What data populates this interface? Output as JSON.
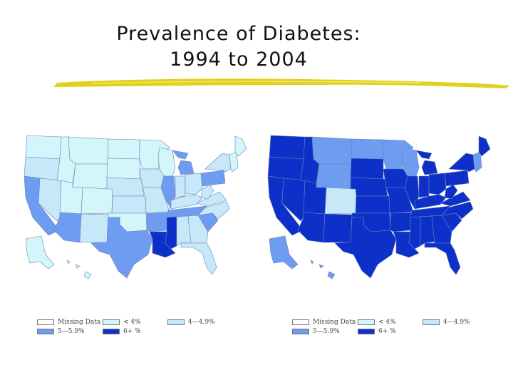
{
  "slide": {
    "title_line1": "Prevalence of Diabetes:",
    "title_line2": "1994 to 2004"
  },
  "colors": {
    "missing": "#ffffff",
    "lt4": "#d2f6fa",
    "4to4_9": "#c6e8f8",
    "5to5_9": "#6e9cf0",
    "6plus": "#0c30c8",
    "border": "#6f80b8",
    "accent_underline": "#e0d020"
  },
  "maps": [
    {
      "year": "1994",
      "fill": {
        "WA": "lt4",
        "OR": "4to4_9",
        "CA": "5to5_9",
        "NV": "4to4_9",
        "ID": "lt4",
        "MT": "lt4",
        "WY": "lt4",
        "UT": "lt4",
        "AZ": "5to5_9",
        "CO": "lt4",
        "NM": "4to4_9",
        "ND": "lt4",
        "SD": "lt4",
        "NE": "4to4_9",
        "KS": "4to4_9",
        "OK": "lt4",
        "TX": "5to5_9",
        "MN": "lt4",
        "IA": "4to4_9",
        "MO": "4to4_9",
        "AR": "5to5_9",
        "LA": "6plus",
        "WI": "lt4",
        "IL": "5to5_9",
        "MI": "5to5_9",
        "IN": "4to4_9",
        "OH": "4to4_9",
        "KY": "4to4_9",
        "TN": "5to5_9",
        "MS": "6plus",
        "AL": "4to4_9",
        "GA": "4to4_9",
        "FL": "4to4_9",
        "SC": "5to5_9",
        "NC": "4to4_9",
        "VA": "4to4_9",
        "WV": "4to4_9",
        "PA": "5to5_9",
        "NY": "4to4_9",
        "NE_REG": "lt4",
        "ME": "lt4",
        "AK": "lt4",
        "HI": "lt4"
      }
    },
    {
      "year": "2004",
      "fill": {
        "WA": "6plus",
        "OR": "6plus",
        "CA": "6plus",
        "NV": "6plus",
        "ID": "6plus",
        "MT": "5to5_9",
        "WY": "5to5_9",
        "UT": "6plus",
        "AZ": "6plus",
        "CO": "4to4_9",
        "NM": "6plus",
        "ND": "5to5_9",
        "SD": "6plus",
        "NE": "6plus",
        "KS": "6plus",
        "OK": "6plus",
        "TX": "6plus",
        "MN": "5to5_9",
        "IA": "6plus",
        "MO": "6plus",
        "AR": "6plus",
        "LA": "6plus",
        "WI": "5to5_9",
        "IL": "6plus",
        "MI": "6plus",
        "IN": "6plus",
        "OH": "6plus",
        "KY": "6plus",
        "TN": "6plus",
        "MS": "6plus",
        "AL": "6plus",
        "GA": "6plus",
        "FL": "6plus",
        "SC": "6plus",
        "NC": "6plus",
        "VA": "6plus",
        "WV": "6plus",
        "PA": "6plus",
        "NY": "6plus",
        "NE_REG": "5to5_9",
        "ME": "6plus",
        "AK": "5to5_9",
        "HI": "5to5_9"
      }
    }
  ],
  "legends": [
    {
      "missing": "Missing Data",
      "lt4": "< 4%",
      "4to4_9": "4—4.9%",
      "5to5_9": "5—5.9%",
      "6plus": "6+ %"
    },
    {
      "missing": "Missing Data",
      "lt4": "< 4%",
      "4to4_9": "4—4.9%",
      "5to5_9": "5—5.9%",
      "6plus": "6+ %"
    }
  ]
}
